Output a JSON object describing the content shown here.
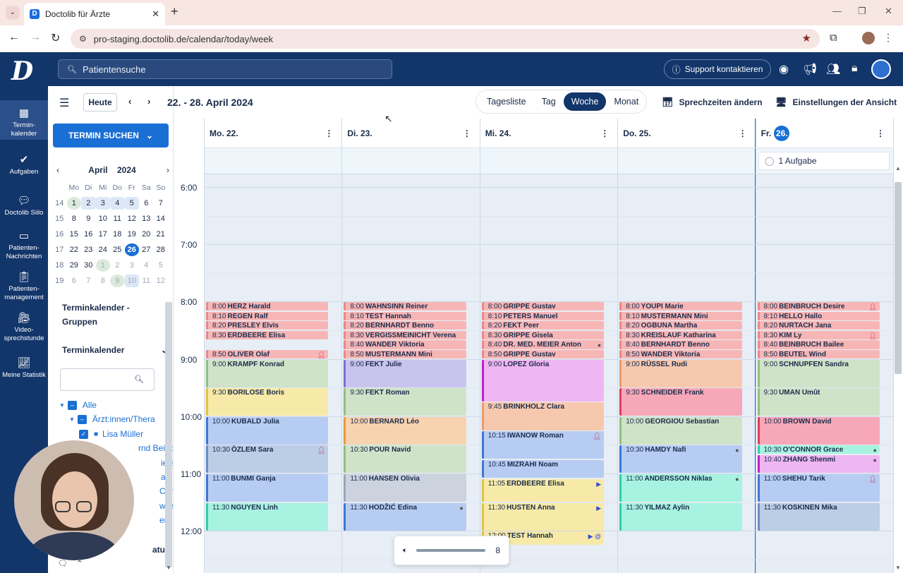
{
  "browser": {
    "tab_title": "Doctolib für Ärzte",
    "favicon": "D",
    "url": "pro-staging.doctolib.de/calendar/today/week"
  },
  "header": {
    "logo": "D",
    "search_placeholder": "Patientensuche",
    "support_label": "Support kontaktieren"
  },
  "sidebar": {
    "items": [
      {
        "label": "Termin-kalender",
        "icon": "calendar-icon"
      },
      {
        "label": "Aufgaben",
        "icon": "check-circle-icon"
      },
      {
        "label": "Doctolib Siilo",
        "icon": "chat-bubbles-icon"
      },
      {
        "label": "Patienten-Nachrichten",
        "icon": "message-icon"
      },
      {
        "label": "Patienten-management",
        "icon": "clipboard-icon"
      },
      {
        "label": "Video-sprechstunde",
        "icon": "video-icon"
      },
      {
        "label": "Meine Statistik",
        "icon": "chart-line-icon"
      }
    ]
  },
  "left_panel": {
    "search_button": "TERMIN SUCHEN",
    "mini_cal": {
      "month": "April",
      "year": "2024",
      "weekdays": [
        "Mo",
        "Di",
        "Mi",
        "Do",
        "Fr",
        "Sa",
        "So"
      ],
      "weeks": [
        {
          "wk": "14",
          "days": [
            "1",
            "2",
            "3",
            "4",
            "5",
            "6",
            "7"
          ]
        },
        {
          "wk": "15",
          "days": [
            "8",
            "9",
            "10",
            "11",
            "12",
            "13",
            "14"
          ]
        },
        {
          "wk": "16",
          "days": [
            "15",
            "16",
            "17",
            "18",
            "19",
            "20",
            "21"
          ]
        },
        {
          "wk": "17",
          "days": [
            "22",
            "23",
            "24",
            "25",
            "26",
            "27",
            "28"
          ]
        },
        {
          "wk": "18",
          "days": [
            "29",
            "30",
            "1",
            "2",
            "3",
            "4",
            "5"
          ]
        },
        {
          "wk": "19",
          "days": [
            "6",
            "7",
            "8",
            "9",
            "10",
            "11",
            "12"
          ]
        }
      ]
    },
    "groups_label": "Terminkalender - Gruppen",
    "calendars_label": "Terminkalender",
    "tree": {
      "all": "Alle",
      "group": "Ärzt:innen/Thera",
      "person1": "Lisa Müller",
      "person2": "rnd Beinbruch",
      "person3": "ieter",
      "person4": "a",
      "person5": "Carla",
      "person6": "wisser",
      "person7": "en",
      "status": "atus"
    }
  },
  "toolbar": {
    "today": "Heute",
    "range": "22. - 28. April 2024",
    "views": [
      "Tagesliste",
      "Tag",
      "Woche",
      "Monat"
    ],
    "active_view": "Woche",
    "change_hours": "Sprechzeiten ändern",
    "view_settings": "Einstellungen der Ansicht"
  },
  "calendar": {
    "days": [
      {
        "label": "Mo. 22."
      },
      {
        "label": "Di. 23."
      },
      {
        "label": "Mi. 24."
      },
      {
        "label": "Do. 25."
      },
      {
        "label": "Fr.",
        "badge": "26."
      }
    ],
    "task_label": "1 Aufgabe",
    "hours": [
      "6:00",
      "7:00",
      "8:00",
      "9:00",
      "10:00",
      "11:00",
      "12:00"
    ],
    "appointments": [
      {
        "day": 0,
        "time": "8:00",
        "name": "HERZ Harald",
        "start": 480,
        "dur": 10,
        "color": "#f7b6b6",
        "border": "#e88888"
      },
      {
        "day": 0,
        "time": "8:10",
        "name": "REGEN Ralf",
        "start": 490,
        "dur": 10,
        "color": "#f7b6b6",
        "border": "#e88888"
      },
      {
        "day": 0,
        "time": "8:20",
        "name": "PRESLEY Elvis",
        "start": 500,
        "dur": 10,
        "color": "#f7b6b6",
        "border": "#e88888"
      },
      {
        "day": 0,
        "time": "8:30",
        "name": "ERDBEERE Elisa",
        "start": 510,
        "dur": 10,
        "color": "#f7b6b6",
        "border": "#e88888"
      },
      {
        "day": 0,
        "time": "8:50",
        "name": "OLIVER Olaf",
        "start": 530,
        "dur": 10,
        "color": "#f7b6b6",
        "border": "#e88888",
        "icon": "person"
      },
      {
        "day": 0,
        "time": "9:00",
        "name": "KRAMPF Konrad",
        "start": 540,
        "dur": 30,
        "color": "#cfe3c8",
        "border": "#8fbf80"
      },
      {
        "day": 0,
        "time": "9:30",
        "name": "BORILOSE Boris",
        "start": 570,
        "dur": 30,
        "color": "#f7eaa8",
        "border": "#e1c33c"
      },
      {
        "day": 0,
        "time": "10:00",
        "name": "KUBALD Julia",
        "start": 600,
        "dur": 30,
        "color": "#b7ccf2",
        "border": "#3f75d8"
      },
      {
        "day": 0,
        "time": "10:30",
        "name": "ÖZLEM Sara",
        "start": 630,
        "dur": 30,
        "color": "#bccde6",
        "border": "#6a8cc4",
        "icon": "person"
      },
      {
        "day": 0,
        "time": "11:00",
        "name": "BUNMI Ganja",
        "start": 660,
        "dur": 30,
        "color": "#b7ccf2",
        "border": "#3f75d8"
      },
      {
        "day": 0,
        "time": "11:30",
        "name": "NGUYEN Linh",
        "start": 690,
        "dur": 30,
        "color": "#a7f2e0",
        "border": "#2fcfa8"
      },
      {
        "day": 1,
        "time": "8:00",
        "name": "WAHNSINN Reiner",
        "start": 480,
        "dur": 10,
        "color": "#f7b6b6",
        "border": "#e88888"
      },
      {
        "day": 1,
        "time": "8:10",
        "name": "TEST Hannah",
        "start": 490,
        "dur": 10,
        "color": "#f7b6b6",
        "border": "#e88888"
      },
      {
        "day": 1,
        "time": "8:20",
        "name": "BERNHARDT Benno",
        "start": 500,
        "dur": 10,
        "color": "#f7b6b6",
        "border": "#e88888"
      },
      {
        "day": 1,
        "time": "8:30",
        "name": "VERGISSMEINICHT Verena",
        "start": 510,
        "dur": 10,
        "color": "#f7b6b6",
        "border": "#e88888"
      },
      {
        "day": 1,
        "time": "8:40",
        "name": "WANDER Viktoria",
        "start": 520,
        "dur": 10,
        "color": "#f7b6b6",
        "border": "#e88888"
      },
      {
        "day": 1,
        "time": "8:50",
        "name": "MUSTERMANN Mini",
        "start": 530,
        "dur": 10,
        "color": "#f7b6b6",
        "border": "#e88888"
      },
      {
        "day": 1,
        "time": "9:00",
        "name": "FEKT Julie",
        "start": 540,
        "dur": 30,
        "color": "#c8c4ee",
        "border": "#7a6fd4"
      },
      {
        "day": 1,
        "time": "9:30",
        "name": "FEKT Roman",
        "start": 570,
        "dur": 30,
        "color": "#cfe3c8",
        "border": "#8fbf80"
      },
      {
        "day": 1,
        "time": "10:00",
        "name": "BERNARD Léo",
        "start": 600,
        "dur": 30,
        "color": "#f7d3b0",
        "border": "#e99a3c"
      },
      {
        "day": 1,
        "time": "10:30",
        "name": "POUR Navid",
        "start": 630,
        "dur": 30,
        "color": "#cfe3c8",
        "border": "#8fbf80"
      },
      {
        "day": 1,
        "time": "11:00",
        "name": "HANSEN Olivia",
        "start": 660,
        "dur": 30,
        "color": "#ccd3de",
        "border": "#9aa5b8"
      },
      {
        "day": 1,
        "time": "11:30",
        "name": "HODŽIĆ Edina",
        "start": 690,
        "dur": 30,
        "color": "#b7ccf2",
        "border": "#3f75d8",
        "icon": "dot"
      },
      {
        "day": 2,
        "time": "8:00",
        "name": "GRIPPE Gustav",
        "start": 480,
        "dur": 10,
        "color": "#f7b6b6",
        "border": "#e88888"
      },
      {
        "day": 2,
        "time": "8:10",
        "name": "PETERS Manuel",
        "start": 490,
        "dur": 10,
        "color": "#f7b6b6",
        "border": "#e88888"
      },
      {
        "day": 2,
        "time": "8:20",
        "name": "FEKT Peer",
        "start": 500,
        "dur": 10,
        "color": "#f7b6b6",
        "border": "#e88888"
      },
      {
        "day": 2,
        "time": "8:30",
        "name": "GRIPPE Gisela",
        "start": 510,
        "dur": 10,
        "color": "#f7b6b6",
        "border": "#e88888"
      },
      {
        "day": 2,
        "time": "8:40",
        "name": "DR. MED. MEIER Anton",
        "start": 520,
        "dur": 10,
        "color": "#f7b6b6",
        "border": "#e88888",
        "icon": "dot"
      },
      {
        "day": 2,
        "time": "8:50",
        "name": "GRIPPE Gustav",
        "start": 530,
        "dur": 10,
        "color": "#f7b6b6",
        "border": "#e88888"
      },
      {
        "day": 2,
        "time": "9:00",
        "name": "LOPEZ Gloria",
        "start": 540,
        "dur": 45,
        "color": "#eeb6f2",
        "border": "#c21fc9"
      },
      {
        "day": 2,
        "time": "9:45",
        "name": "BRINKHOLZ Clara",
        "start": 585,
        "dur": 30,
        "color": "#f6c8ae",
        "border": "#e99a6a"
      },
      {
        "day": 2,
        "time": "10:15",
        "name": "IWANOW Roman",
        "start": 615,
        "dur": 30,
        "color": "#b7ccf2",
        "border": "#3f75d8",
        "icon": "person"
      },
      {
        "day": 2,
        "time": "10:45",
        "name": "MIZRAHI Noam",
        "start": 645,
        "dur": 20,
        "color": "#b7ccf2",
        "border": "#3f75d8"
      },
      {
        "day": 2,
        "time": "11:05",
        "name": "ERDBEERE Elisa",
        "start": 665,
        "dur": 25,
        "color": "#f7eaa8",
        "border": "#e1c33c",
        "icon": "video"
      },
      {
        "day": 2,
        "time": "11:30",
        "name": "HUSTEN Anna",
        "start": 690,
        "dur": 30,
        "color": "#f7eaa8",
        "border": "#e1c33c",
        "icon": "video"
      },
      {
        "day": 2,
        "time": "12:00",
        "name": "TEST Hannah",
        "start": 720,
        "dur": 15,
        "color": "#f7eaa8",
        "border": "#e1c33c",
        "icon": "video @"
      },
      {
        "day": 3,
        "time": "8:00",
        "name": "YOUPI Marie",
        "start": 480,
        "dur": 10,
        "color": "#f7b6b6",
        "border": "#e88888"
      },
      {
        "day": 3,
        "time": "8:10",
        "name": "MUSTERMANN Mini",
        "start": 490,
        "dur": 10,
        "color": "#f7b6b6",
        "border": "#e88888"
      },
      {
        "day": 3,
        "time": "8:20",
        "name": "OGBUNA Martha",
        "start": 500,
        "dur": 10,
        "color": "#f7b6b6",
        "border": "#e88888"
      },
      {
        "day": 3,
        "time": "8:30",
        "name": "KREISLAUF Katharina",
        "start": 510,
        "dur": 10,
        "color": "#f7b6b6",
        "border": "#e88888"
      },
      {
        "day": 3,
        "time": "8:40",
        "name": "BERNHARDT Benno",
        "start": 520,
        "dur": 10,
        "color": "#f7b6b6",
        "border": "#e88888"
      },
      {
        "day": 3,
        "time": "8:50",
        "name": "WANDER Viktoria",
        "start": 530,
        "dur": 10,
        "color": "#f7b6b6",
        "border": "#e88888"
      },
      {
        "day": 3,
        "time": "9:00",
        "name": "RÜSSEL Rudi",
        "start": 540,
        "dur": 30,
        "color": "#f6c8ae",
        "border": "#e99a6a"
      },
      {
        "day": 3,
        "time": "9:30",
        "name": "SCHNEIDER Frank",
        "start": 570,
        "dur": 30,
        "color": "#f7a8b8",
        "border": "#e33b5c"
      },
      {
        "day": 3,
        "time": "10:00",
        "name": "GEORGIOU Sebastian",
        "start": 600,
        "dur": 30,
        "color": "#cfe3c8",
        "border": "#8fbf80"
      },
      {
        "day": 3,
        "time": "10:30",
        "name": "HAMDY Nafi",
        "start": 630,
        "dur": 30,
        "color": "#b7ccf2",
        "border": "#3f75d8",
        "icon": "dot"
      },
      {
        "day": 3,
        "time": "11:00",
        "name": "ANDERSSON Niklas",
        "start": 660,
        "dur": 30,
        "color": "#a7f2e0",
        "border": "#2fcfa8",
        "icon": "dot"
      },
      {
        "day": 3,
        "time": "11:30",
        "name": "YILMAZ Aylin",
        "start": 690,
        "dur": 30,
        "color": "#a7f2e0",
        "border": "#2fcfa8"
      },
      {
        "day": 4,
        "time": "8:00",
        "name": "BEINBRUCH Desire",
        "start": 480,
        "dur": 10,
        "color": "#f7b6b6",
        "border": "#e88888",
        "icon": "person"
      },
      {
        "day": 4,
        "time": "8:10",
        "name": "HELLO Hallo",
        "start": 490,
        "dur": 10,
        "color": "#f7b6b6",
        "border": "#e88888"
      },
      {
        "day": 4,
        "time": "8:20",
        "name": "NURTACH Jana",
        "start": 500,
        "dur": 10,
        "color": "#f7b6b6",
        "border": "#e88888"
      },
      {
        "day": 4,
        "time": "8:30",
        "name": "KIM Ly",
        "start": 510,
        "dur": 10,
        "color": "#f7b6b6",
        "border": "#e88888",
        "icon": "person"
      },
      {
        "day": 4,
        "time": "8:40",
        "name": "BEINBRUCH Bailee",
        "start": 520,
        "dur": 10,
        "color": "#f7b6b6",
        "border": "#e88888"
      },
      {
        "day": 4,
        "time": "8:50",
        "name": "BEUTEL Wind",
        "start": 530,
        "dur": 10,
        "color": "#f7b6b6",
        "border": "#e88888"
      },
      {
        "day": 4,
        "time": "9:00",
        "name": "SCHNUPFEN Sandra",
        "start": 540,
        "dur": 30,
        "color": "#cfe3c8",
        "border": "#8fbf80"
      },
      {
        "day": 4,
        "time": "9:30",
        "name": "UMAN Umût",
        "start": 570,
        "dur": 30,
        "color": "#cfe3c8",
        "border": "#8fbf80"
      },
      {
        "day": 4,
        "time": "10:00",
        "name": "BROWN David",
        "start": 600,
        "dur": 30,
        "color": "#f7a8b8",
        "border": "#e33b5c"
      },
      {
        "day": 4,
        "time": "10:30",
        "name": "O'CONNOR Grace",
        "start": 630,
        "dur": 10,
        "color": "#a7f2e0",
        "border": "#2fcfa8",
        "icon": "dot"
      },
      {
        "day": 4,
        "time": "10:40",
        "name": "ZHANG Shenmi",
        "start": 640,
        "dur": 20,
        "color": "#eeb6f2",
        "border": "#c21fc9",
        "icon": "dot"
      },
      {
        "day": 4,
        "time": "11:00",
        "name": "SHEHU Tarik",
        "start": 660,
        "dur": 30,
        "color": "#b7ccf2",
        "border": "#3f75d8",
        "icon": "person"
      },
      {
        "day": 4,
        "time": "11:30",
        "name": "KOSKINEN Mika",
        "start": 690,
        "dur": 30,
        "color": "#bccde6",
        "border": "#6a8cc4"
      }
    ]
  },
  "volume": {
    "value": "8"
  }
}
